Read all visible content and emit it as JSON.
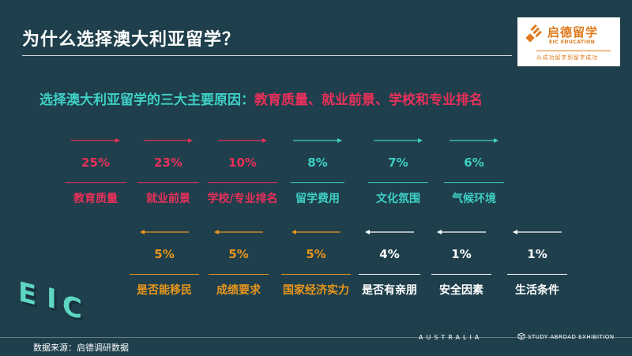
{
  "title": "为什么选择澳大利亚留学？",
  "logo": {
    "cn": "启德留学",
    "en": "EIC EDUCATION",
    "slogan": "从成功留学到留学成功"
  },
  "subtitle": {
    "part1": "选择澳大利亚留学的三大主要原因：",
    "part2": "教育质量、就业前景、学校和专业排名"
  },
  "row1": [
    {
      "pct": "25%",
      "label": "教育质量",
      "color": "red"
    },
    {
      "pct": "23%",
      "label": "就业前景",
      "color": "red"
    },
    {
      "pct": "10%",
      "label": "学校/专业排名",
      "color": "red"
    },
    {
      "pct": "8%",
      "label": "留学费用",
      "color": "teal"
    },
    {
      "pct": "7%",
      "label": "文化氛围",
      "color": "teal"
    },
    {
      "pct": "6%",
      "label": "气候环境",
      "color": "teal"
    }
  ],
  "row2": [
    {
      "pct": "5%",
      "label": "是否能移民",
      "color": "orange"
    },
    {
      "pct": "5%",
      "label": "成绩要求",
      "color": "orange"
    },
    {
      "pct": "5%",
      "label": "国家经济实力",
      "color": "orange"
    },
    {
      "pct": "4%",
      "label": "是否有亲朋",
      "color": "white"
    },
    {
      "pct": "1%",
      "label": "安全因素",
      "color": "white"
    },
    {
      "pct": "1%",
      "label": "生活条件",
      "color": "white"
    }
  ],
  "footer": {
    "source": "数据来源：启德调研数据",
    "australia": "AUSTRALIA",
    "exhibition": "STUDY ABROAD EXHIBITION"
  },
  "eic_art": "EIC",
  "colors": {
    "background": "#1e3f4b",
    "red": "#e8305a",
    "teal": "#3ecfc4",
    "orange": "#e9961c",
    "white": "#ffffff",
    "logo": "#e07a1c"
  }
}
